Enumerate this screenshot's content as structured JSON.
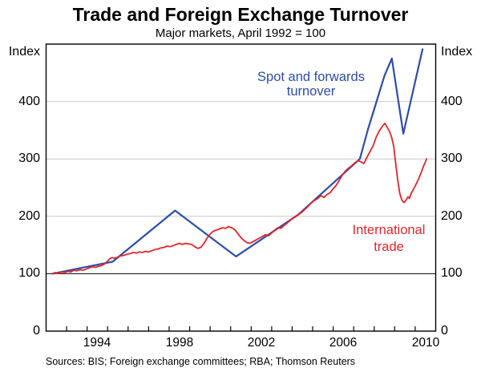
{
  "page": {
    "title": "Trade and Foreign Exchange Turnover",
    "subtitle": "Major markets, April 1992 = 100",
    "source": "Sources: BIS; Foreign exchange committees; RBA; Thomson Reuters"
  },
  "axes": {
    "left_unit": "Index",
    "right_unit": "Index"
  },
  "legend": {
    "spot_line1": "Spot and forwards",
    "spot_line2": "turnover",
    "trade_line1": "International",
    "trade_line2": "trade"
  },
  "chart_data": {
    "type": "line",
    "title": "Trade and Foreign Exchange Turnover",
    "subtitle": "Major markets, April 1992 = 100",
    "ylabel": "Index",
    "xlabel": "",
    "xlim": [
      1992,
      2011
    ],
    "ylim": [
      0,
      500
    ],
    "grid": true,
    "gridlines": [
      100,
      200,
      300,
      400
    ],
    "reference_line": 100,
    "y_ticks": [
      400,
      300,
      200,
      100,
      0
    ],
    "x_tick_labels": [
      {
        "year": 1994,
        "label": "1994"
      },
      {
        "year": 1998,
        "label": "1998"
      },
      {
        "year": 2002,
        "label": "2002"
      },
      {
        "year": 2006,
        "label": "2006"
      },
      {
        "year": 2010,
        "label": "2010"
      }
    ],
    "colors": {
      "grid": "#c9c9c9",
      "frame": "#000000",
      "spot": "#2d4da8",
      "trade": "#e0252b"
    },
    "series": [
      {
        "name": "Spot and forwards turnover",
        "color": "#2d4da8",
        "width": 2.2,
        "points": [
          [
            1992.3,
            100
          ],
          [
            1995.25,
            121
          ],
          [
            1998.29,
            210
          ],
          [
            2001.26,
            130
          ],
          [
            2004.3,
            203
          ],
          [
            2007.3,
            300
          ],
          [
            2007.7,
            352
          ],
          [
            2008.1,
            398
          ],
          [
            2008.5,
            445
          ],
          [
            2008.86,
            475
          ],
          [
            2009.42,
            344
          ],
          [
            2010.36,
            491
          ]
        ]
      },
      {
        "name": "International trade",
        "color": "#e0252b",
        "width": 1.8,
        "points": [
          [
            1992.3,
            100
          ],
          [
            1992.45,
            102
          ],
          [
            1992.6,
            100
          ],
          [
            1992.75,
            103
          ],
          [
            1992.9,
            102
          ],
          [
            1993.05,
            104
          ],
          [
            1993.2,
            103
          ],
          [
            1993.35,
            106
          ],
          [
            1993.5,
            105
          ],
          [
            1993.65,
            107
          ],
          [
            1993.8,
            106
          ],
          [
            1993.95,
            108
          ],
          [
            1994.1,
            110
          ],
          [
            1994.25,
            112
          ],
          [
            1994.4,
            111
          ],
          [
            1994.55,
            113
          ],
          [
            1994.7,
            114
          ],
          [
            1994.85,
            117
          ],
          [
            1995.0,
            122
          ],
          [
            1995.1,
            126
          ],
          [
            1995.2,
            128
          ],
          [
            1995.35,
            127
          ],
          [
            1995.5,
            129
          ],
          [
            1995.65,
            131
          ],
          [
            1995.8,
            132
          ],
          [
            1995.95,
            134
          ],
          [
            1996.1,
            135
          ],
          [
            1996.25,
            137
          ],
          [
            1996.4,
            136
          ],
          [
            1996.55,
            138
          ],
          [
            1996.7,
            137
          ],
          [
            1996.85,
            139
          ],
          [
            1997.0,
            138
          ],
          [
            1997.15,
            140
          ],
          [
            1997.3,
            142
          ],
          [
            1997.45,
            143
          ],
          [
            1997.6,
            145
          ],
          [
            1997.75,
            146
          ],
          [
            1997.9,
            148
          ],
          [
            1998.05,
            147
          ],
          [
            1998.2,
            149
          ],
          [
            1998.35,
            151
          ],
          [
            1998.5,
            153
          ],
          [
            1998.65,
            151
          ],
          [
            1998.8,
            153
          ],
          [
            1998.95,
            152
          ],
          [
            1999.1,
            151
          ],
          [
            1999.25,
            147
          ],
          [
            1999.4,
            144
          ],
          [
            1999.55,
            146
          ],
          [
            1999.7,
            153
          ],
          [
            1999.85,
            162
          ],
          [
            2000.0,
            169
          ],
          [
            2000.15,
            174
          ],
          [
            2000.3,
            176
          ],
          [
            2000.45,
            178
          ],
          [
            2000.6,
            180
          ],
          [
            2000.75,
            179
          ],
          [
            2000.9,
            182
          ],
          [
            2001.05,
            180
          ],
          [
            2001.2,
            177
          ],
          [
            2001.35,
            170
          ],
          [
            2001.5,
            163
          ],
          [
            2001.65,
            158
          ],
          [
            2001.8,
            154
          ],
          [
            2001.95,
            153
          ],
          [
            2002.1,
            156
          ],
          [
            2002.25,
            159
          ],
          [
            2002.4,
            162
          ],
          [
            2002.55,
            165
          ],
          [
            2002.7,
            168
          ],
          [
            2002.85,
            166
          ],
          [
            2003.0,
            171
          ],
          [
            2003.15,
            176
          ],
          [
            2003.3,
            180
          ],
          [
            2003.45,
            179
          ],
          [
            2003.6,
            184
          ],
          [
            2003.75,
            188
          ],
          [
            2003.9,
            193
          ],
          [
            2004.05,
            197
          ],
          [
            2004.2,
            200
          ],
          [
            2004.35,
            204
          ],
          [
            2004.5,
            208
          ],
          [
            2004.65,
            213
          ],
          [
            2004.8,
            218
          ],
          [
            2004.95,
            224
          ],
          [
            2005.1,
            228
          ],
          [
            2005.25,
            231
          ],
          [
            2005.4,
            236
          ],
          [
            2005.55,
            233
          ],
          [
            2005.7,
            238
          ],
          [
            2005.85,
            241
          ],
          [
            2006.0,
            248
          ],
          [
            2006.15,
            254
          ],
          [
            2006.3,
            263
          ],
          [
            2006.45,
            272
          ],
          [
            2006.6,
            279
          ],
          [
            2006.75,
            284
          ],
          [
            2006.9,
            288
          ],
          [
            2007.05,
            293
          ],
          [
            2007.2,
            297
          ],
          [
            2007.35,
            295
          ],
          [
            2007.5,
            292
          ],
          [
            2007.65,
            303
          ],
          [
            2007.8,
            313
          ],
          [
            2007.95,
            323
          ],
          [
            2008.1,
            338
          ],
          [
            2008.25,
            349
          ],
          [
            2008.4,
            357
          ],
          [
            2008.52,
            362
          ],
          [
            2008.62,
            356
          ],
          [
            2008.75,
            348
          ],
          [
            2008.85,
            338
          ],
          [
            2008.95,
            322
          ],
          [
            2009.05,
            292
          ],
          [
            2009.15,
            262
          ],
          [
            2009.25,
            240
          ],
          [
            2009.35,
            228
          ],
          [
            2009.45,
            224
          ],
          [
            2009.55,
            228
          ],
          [
            2009.65,
            234
          ],
          [
            2009.72,
            231
          ],
          [
            2009.8,
            240
          ],
          [
            2009.9,
            246
          ],
          [
            2010.0,
            253
          ],
          [
            2010.1,
            260
          ],
          [
            2010.2,
            268
          ],
          [
            2010.3,
            277
          ],
          [
            2010.4,
            287
          ],
          [
            2010.5,
            295
          ],
          [
            2010.55,
            300
          ]
        ]
      }
    ]
  }
}
